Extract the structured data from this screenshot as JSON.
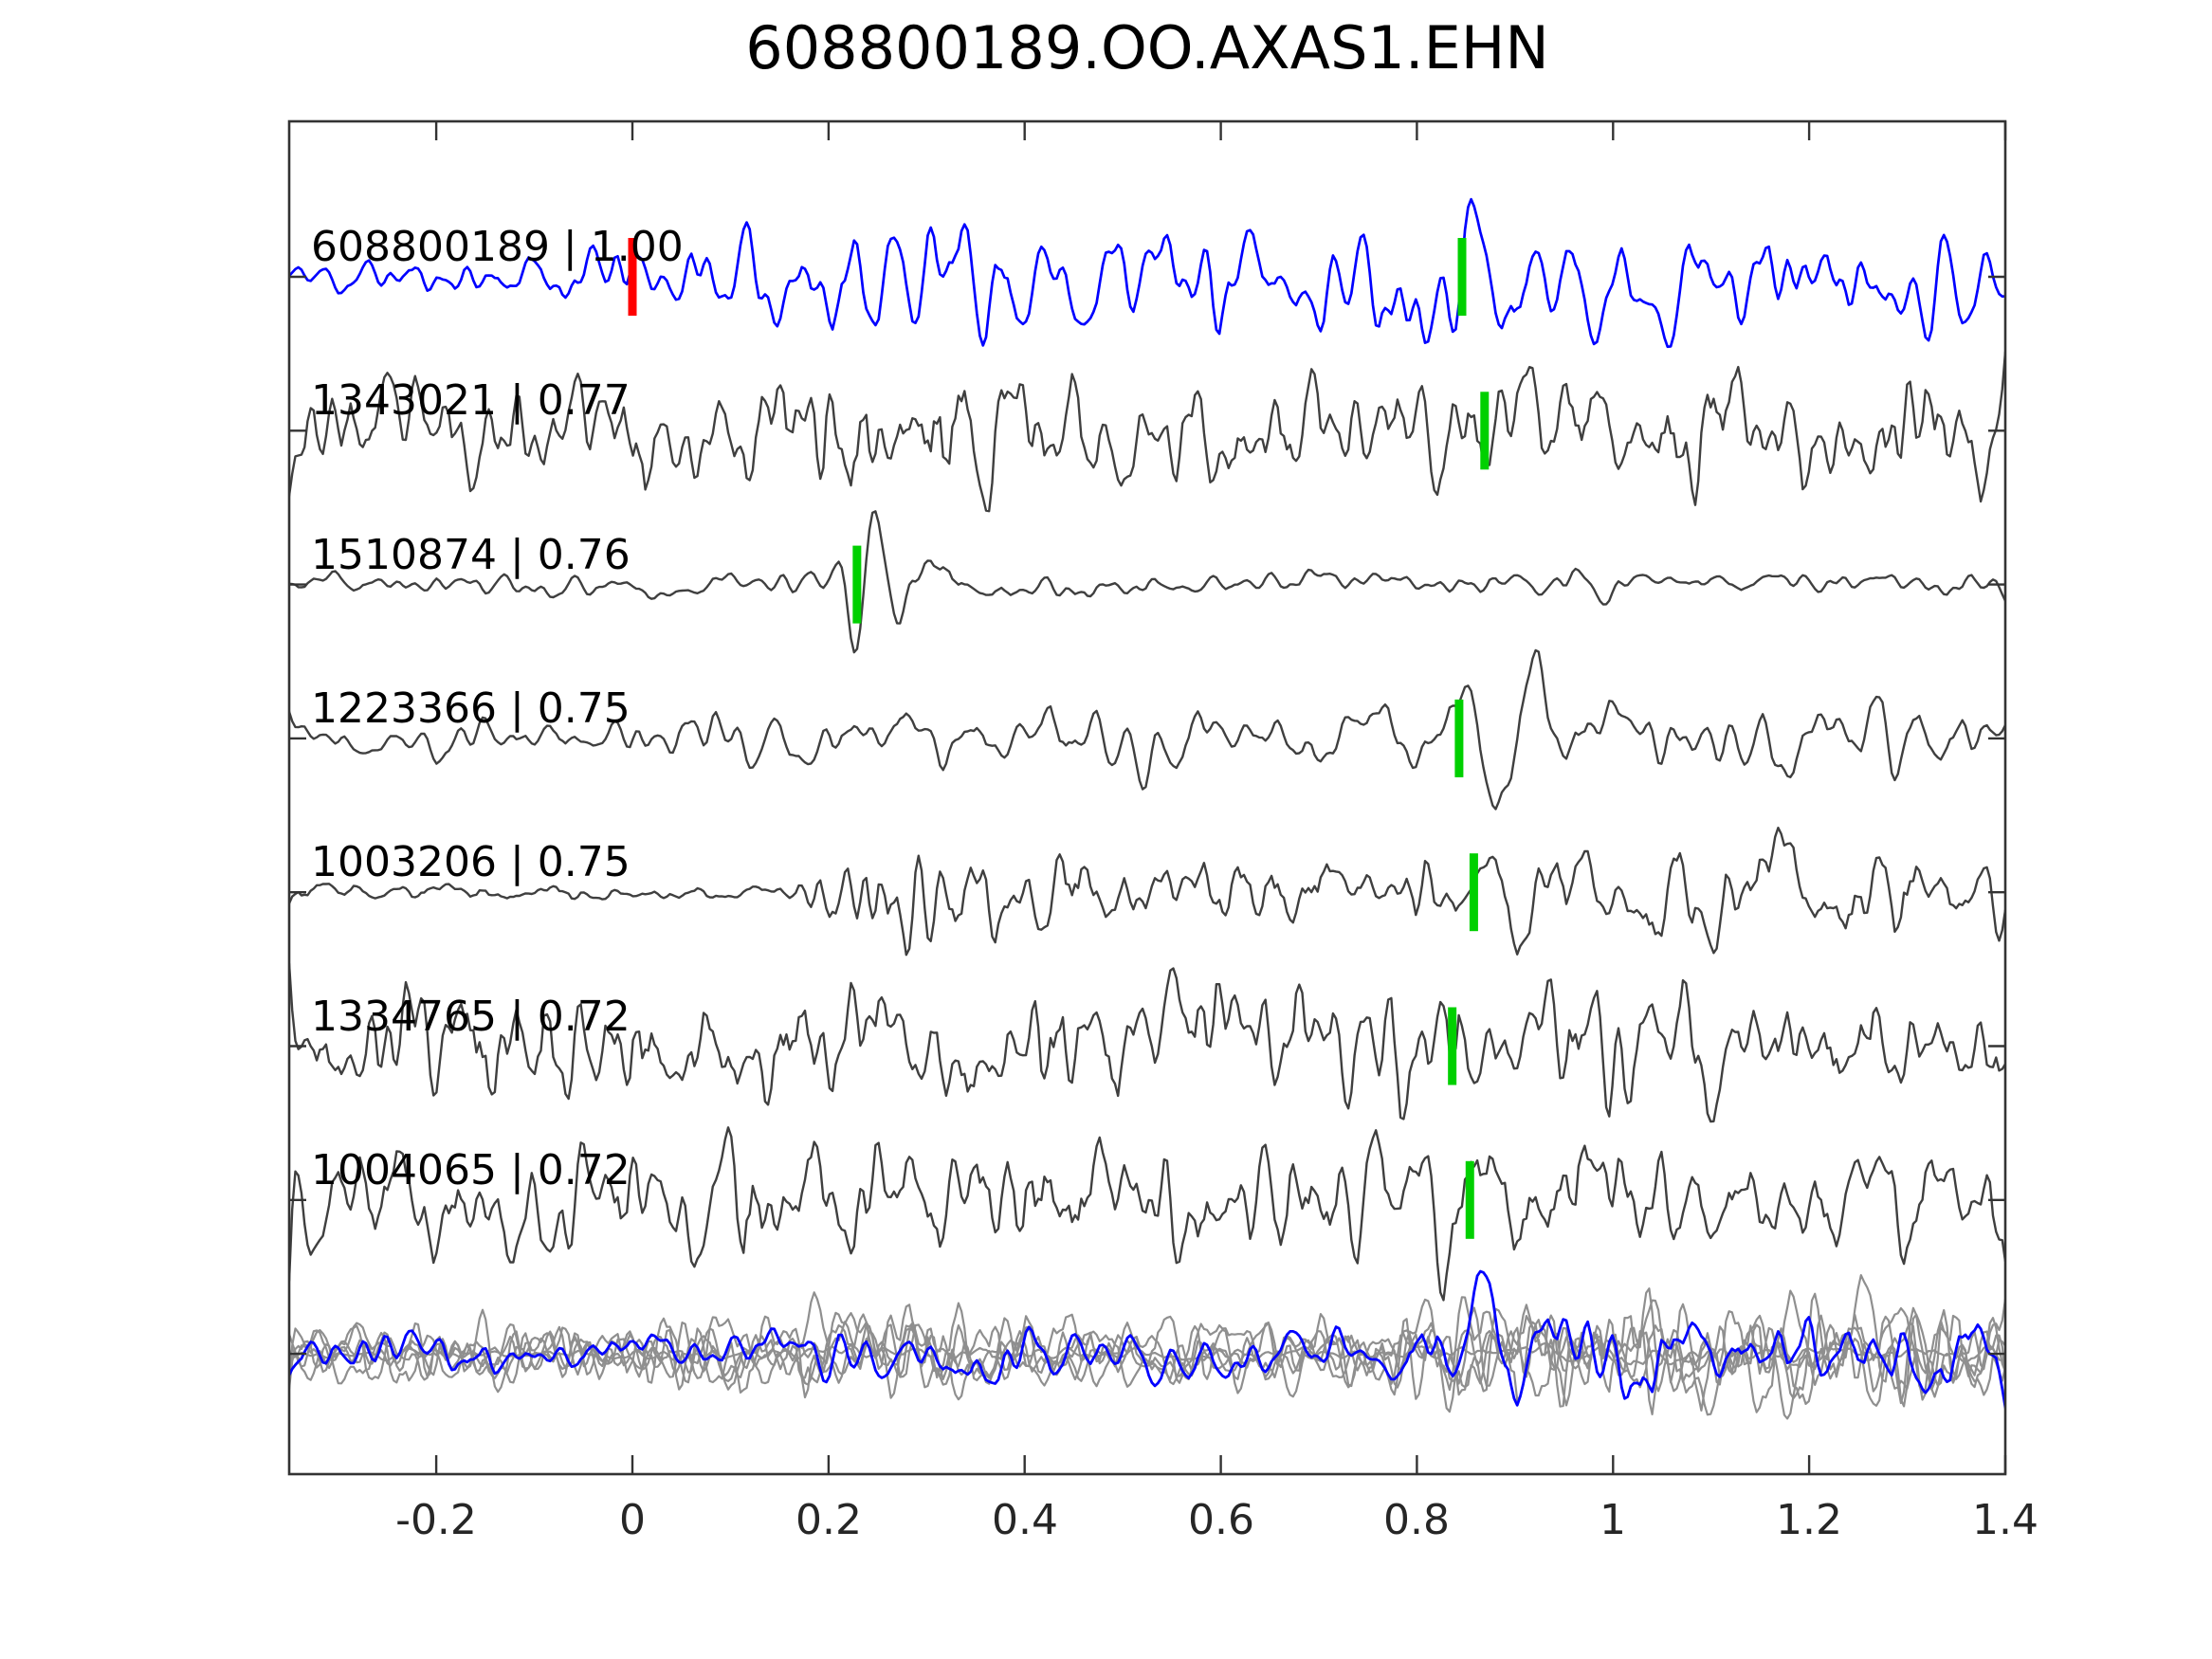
{
  "title": "608800189.OO.AXAS1.EHN",
  "colors": {
    "template_trace": "#0000ff",
    "match_trace": "#3f3f3f",
    "overlay_trace": "#8f8f8f",
    "overlay_highlight": "#0000ff",
    "pick_marker": "#00d000",
    "reference_marker": "#ff0000",
    "axis": "#333333",
    "text": "#000000"
  },
  "chart_data": {
    "type": "line",
    "title": "608800189.OO.AXAS1.EHN",
    "xlabel": "",
    "ylabel": "",
    "xlim": [
      -0.35,
      1.4
    ],
    "grid": false,
    "legend": "none",
    "x_ticks": [
      -0.2,
      0,
      0.2,
      0.4,
      0.6,
      0.8,
      1,
      1.2,
      1.4
    ],
    "x_tick_labels": [
      "-0.2",
      "0",
      "0.2",
      "0.4",
      "0.6",
      "0.8",
      "1",
      "1.2",
      "1.4"
    ],
    "rows": 8,
    "traces": [
      {
        "id": "608800189",
        "correlation": "1.00",
        "label": "608800189 | 1.00",
        "color": "#0000ff",
        "pick_time": 0.846,
        "ref_time": 0.0,
        "synthesis": {
          "seed": 11,
          "passes": 3,
          "envelope": [
            [
              -0.35,
              20
            ],
            [
              -0.1,
              24
            ],
            [
              0.05,
              40
            ],
            [
              0.2,
              55
            ],
            [
              0.35,
              58
            ],
            [
              0.5,
              55
            ],
            [
              0.65,
              50
            ],
            [
              0.8,
              48
            ],
            [
              0.95,
              50
            ],
            [
              1.1,
              46
            ],
            [
              1.25,
              42
            ],
            [
              1.4,
              46
            ]
          ],
          "wavelets": [
            {
              "c": 0.872,
              "A": 70,
              "s": 0.035,
              "l": 0.07,
              "p": 3.14
            }
          ]
        }
      },
      {
        "id": "1343021",
        "correlation": "0.77",
        "label": "1343021 | 0.77",
        "color": "#3f3f3f",
        "pick_time": 0.869,
        "synthesis": {
          "seed": 23,
          "passes": 2,
          "envelope": [
            [
              -0.35,
              42
            ],
            [
              -0.1,
              46
            ],
            [
              0.1,
              55
            ],
            [
              0.3,
              62
            ],
            [
              0.5,
              58
            ],
            [
              0.7,
              55
            ],
            [
              0.85,
              52
            ],
            [
              1.0,
              50
            ],
            [
              1.15,
              56
            ],
            [
              1.4,
              50
            ]
          ],
          "wavelets": []
        }
      },
      {
        "id": "1510874",
        "correlation": "0.76",
        "label": "1510874 | 0.76",
        "color": "#3f3f3f",
        "pick_time": 0.229,
        "synthesis": {
          "seed": 37,
          "passes": 3,
          "envelope": [
            [
              -0.35,
              11
            ],
            [
              0.18,
              11
            ],
            [
              0.24,
              20
            ],
            [
              0.3,
              20
            ],
            [
              0.38,
              16
            ],
            [
              0.55,
              12
            ],
            [
              0.75,
              11
            ],
            [
              0.9,
              13
            ],
            [
              1.1,
              11
            ],
            [
              1.3,
              13
            ],
            [
              1.4,
              10
            ]
          ],
          "wavelets": [
            {
              "c": 0.238,
              "A": 85,
              "s": 0.022,
              "l": 0.045,
              "p": 0
            },
            {
              "c": 0.295,
              "A": 25,
              "s": 0.03,
              "l": 0.06,
              "p": 0
            }
          ]
        }
      },
      {
        "id": "1223366",
        "correlation": "0.75",
        "label": "1223366 | 0.75",
        "color": "#3f3f3f",
        "pick_time": 0.843,
        "synthesis": {
          "seed": 41,
          "passes": 3,
          "envelope": [
            [
              -0.35,
              18
            ],
            [
              0.0,
              20
            ],
            [
              0.2,
              27
            ],
            [
              0.4,
              29
            ],
            [
              0.6,
              31
            ],
            [
              0.78,
              30
            ],
            [
              0.95,
              35
            ],
            [
              1.1,
              40
            ],
            [
              1.25,
              37
            ],
            [
              1.4,
              31
            ]
          ],
          "wavelets": [
            {
              "c": 0.9,
              "A": 75,
              "s": 0.042,
              "l": 0.085,
              "p": 0
            }
          ]
        }
      },
      {
        "id": "1003206",
        "correlation": "0.75",
        "label": "1003206 | 0.75",
        "color": "#3f3f3f",
        "pick_time": 0.858,
        "synthesis": {
          "seed": 53,
          "passes": 2,
          "envelope": [
            [
              -0.35,
              7
            ],
            [
              0.16,
              7
            ],
            [
              0.2,
              32
            ],
            [
              0.26,
              48
            ],
            [
              0.34,
              46
            ],
            [
              0.45,
              38
            ],
            [
              0.6,
              33
            ],
            [
              0.75,
              34
            ],
            [
              0.88,
              38
            ],
            [
              1.0,
              42
            ],
            [
              1.15,
              46
            ],
            [
              1.28,
              40
            ],
            [
              1.4,
              33
            ]
          ],
          "wavelets": [
            {
              "c": 0.885,
              "A": 58,
              "s": 0.032,
              "l": 0.065,
              "p": 3.14
            },
            {
              "c": 1.13,
              "A": 52,
              "s": 0.04,
              "l": 0.09,
              "p": 0
            }
          ]
        }
      },
      {
        "id": "1334765",
        "correlation": "0.72",
        "label": "1334765 | 0.72",
        "color": "#3f3f3f",
        "pick_time": 0.836,
        "synthesis": {
          "seed": 67,
          "passes": 2,
          "envelope": [
            [
              -0.35,
              42
            ],
            [
              -0.1,
              48
            ],
            [
              0.1,
              52
            ],
            [
              0.3,
              55
            ],
            [
              0.5,
              57
            ],
            [
              0.7,
              52
            ],
            [
              0.9,
              55
            ],
            [
              1.1,
              57
            ],
            [
              1.25,
              50
            ],
            [
              1.4,
              44
            ]
          ],
          "wavelets": [
            {
              "c": 0.85,
              "A": 42,
              "s": 0.04,
              "l": 0.08,
              "p": 3.14
            }
          ]
        }
      },
      {
        "id": "1004065",
        "correlation": "0.72",
        "label": "1004065 | 0.72",
        "color": "#3f3f3f",
        "pick_time": 0.854,
        "synthesis": {
          "seed": 79,
          "passes": 2,
          "envelope": [
            [
              -0.35,
              47
            ],
            [
              -0.1,
              54
            ],
            [
              0.1,
              57
            ],
            [
              0.3,
              52
            ],
            [
              0.5,
              54
            ],
            [
              0.7,
              56
            ],
            [
              0.9,
              54
            ],
            [
              1.05,
              52
            ],
            [
              1.2,
              50
            ],
            [
              1.4,
              50
            ]
          ],
          "wavelets": [
            {
              "c": 0.845,
              "A": 65,
              "s": 0.045,
              "l": 0.09,
              "p": 0
            }
          ]
        }
      },
      {
        "id": "aligned-overlay",
        "label": "",
        "gray_envelope": [
          [
            -0.35,
            26
          ],
          [
            0.0,
            28
          ],
          [
            0.18,
            35
          ],
          [
            0.3,
            37
          ],
          [
            0.45,
            31
          ],
          [
            0.6,
            29
          ],
          [
            0.72,
            31
          ],
          [
            0.82,
            45
          ],
          [
            0.95,
            54
          ],
          [
            1.1,
            50
          ],
          [
            1.25,
            49
          ],
          [
            1.4,
            45
          ]
        ],
        "gray_members": [
          {
            "seed": 101,
            "scale": 1.0
          },
          {
            "seed": 113,
            "scale": 0.92
          },
          {
            "seed": 127,
            "scale": 1.08
          },
          {
            "seed": 139,
            "scale": 0.85
          },
          {
            "seed": 151,
            "scale": 0.18
          },
          {
            "seed": 163,
            "scale": 1.0
          }
        ],
        "highlight_member": {
          "seed": 211,
          "passes": 3,
          "envelope": [
            [
              -0.35,
              17
            ],
            [
              0.0,
              19
            ],
            [
              0.2,
              23
            ],
            [
              0.4,
              25
            ],
            [
              0.6,
              23
            ],
            [
              0.75,
              27
            ],
            [
              0.85,
              46
            ],
            [
              0.95,
              52
            ],
            [
              1.05,
              46
            ],
            [
              1.2,
              41
            ],
            [
              1.4,
              43
            ]
          ],
          "wavelets": [
            {
              "c": 0.89,
              "A": 38,
              "s": 0.05,
              "l": 0.09,
              "p": 3.14
            }
          ]
        }
      }
    ]
  }
}
